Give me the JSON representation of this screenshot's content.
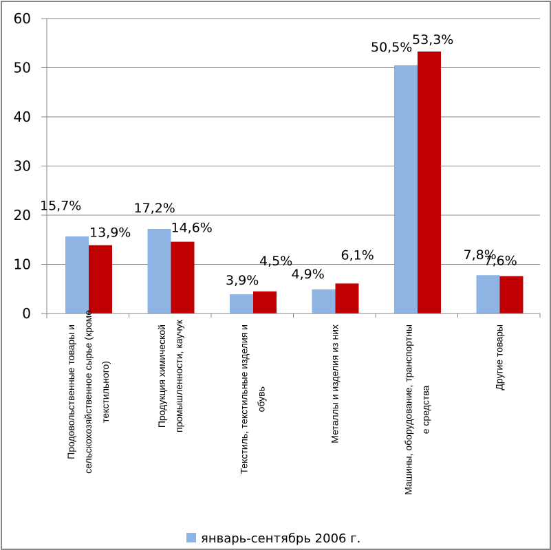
{
  "chart_data": {
    "type": "bar",
    "title": "",
    "xlabel": "",
    "ylabel": "",
    "ylim": [
      0,
      60
    ],
    "yticks": [
      "0",
      "10",
      "20",
      "30",
      "40",
      "50",
      "60"
    ],
    "grid": true,
    "categories": [
      [
        "Продовольственные товары и",
        "сельскохозяйственное сырье (кроме",
        "текстильного)"
      ],
      [
        "Продукция химической",
        "промышленности, каучук"
      ],
      [
        "Текстиль, текстильные изделия и",
        "обувь"
      ],
      [
        "Металлы и изделия из них"
      ],
      [
        "Машины, оборудование, транспортны",
        "е средства"
      ],
      [
        "Другие товары"
      ]
    ],
    "series": [
      {
        "name": "январь-сентябрь 2006 г.",
        "color": "#8EB4E3",
        "values": [
          15.7,
          17.2,
          3.9,
          4.9,
          50.5,
          7.8
        ],
        "labels": [
          "15,7%",
          "17,2%",
          "3,9%",
          "4,9%",
          "50,5%",
          "7,8%"
        ]
      },
      {
        "name": "",
        "color": "#C00000",
        "values": [
          13.9,
          14.6,
          4.5,
          6.1,
          53.3,
          7.6
        ],
        "labels": [
          "13,9%",
          "14,6%",
          "4,5%",
          "6,1%",
          "53,3%",
          "7,6%"
        ]
      }
    ],
    "legend": {
      "placement": "bottom",
      "entries": [
        "январь-сентябрь 2006 г."
      ]
    }
  }
}
